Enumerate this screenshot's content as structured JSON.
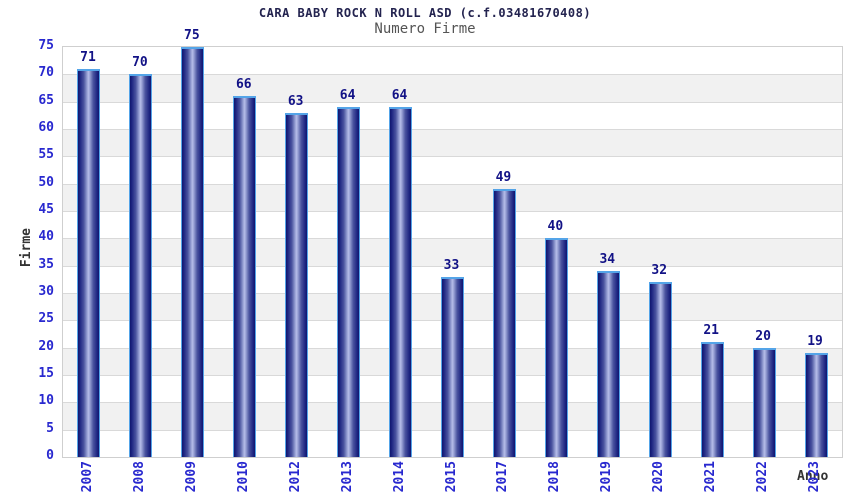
{
  "chart_data": {
    "type": "bar",
    "title": "CARA BABY ROCK N ROLL ASD (c.f.03481670408)",
    "subtitle": "Numero Firme",
    "xlabel": "Anno",
    "ylabel": "Firme",
    "categories": [
      "2007",
      "2008",
      "2009",
      "2010",
      "2012",
      "2013",
      "2014",
      "2015",
      "2017",
      "2018",
      "2019",
      "2020",
      "2021",
      "2022",
      "2023"
    ],
    "values": [
      71,
      70,
      75,
      66,
      63,
      64,
      64,
      33,
      49,
      40,
      34,
      32,
      21,
      20,
      19
    ],
    "ylim": [
      0,
      75
    ],
    "ytick_step": 5,
    "legend": "none",
    "grid": "horizontal-bands-every-5",
    "colors": {
      "background": "#ffffff",
      "title": "#23234f",
      "subtitle": "#545454",
      "axis_title": "#333333",
      "tick_label": "#2828cf",
      "value_label": "#121286",
      "bar_dark": "#10166e",
      "bar_deep": "#1c2380",
      "bar_mid": "#4b55a0",
      "bar_soft": "#9aa3d6",
      "bar_light": "#b6bde9",
      "bar_border": "#54a4e8",
      "band": "#f1f1f1",
      "gridline": "#d9d9d9",
      "plot_border": "#cfcfcf"
    }
  }
}
